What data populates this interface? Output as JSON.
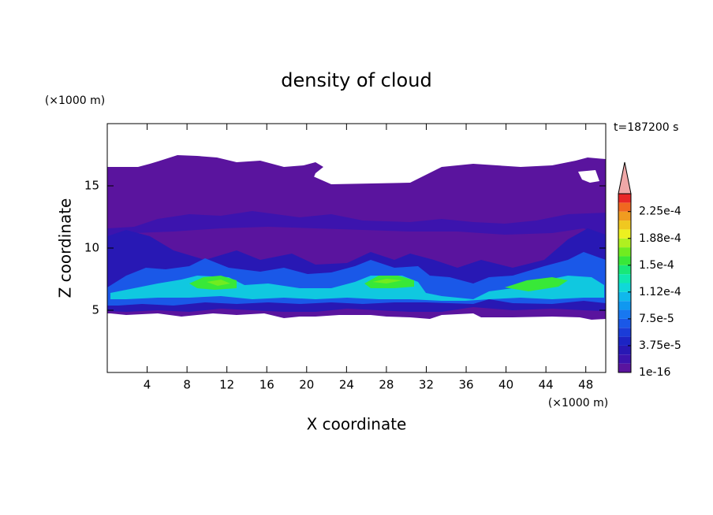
{
  "chart_data": {
    "type": "contour",
    "title": "density of cloud",
    "xlabel": "X coordinate",
    "ylabel": "Z coordinate",
    "x_unit": "(×1000 m)",
    "y_unit": "(×1000 m)",
    "annotation": "t=187200 s",
    "xlim": [
      0,
      50
    ],
    "ylim": [
      0,
      20
    ],
    "xticks": [
      4,
      8,
      12,
      16,
      20,
      24,
      28,
      32,
      36,
      40,
      44,
      48
    ],
    "yticks": [
      5,
      10,
      15
    ],
    "levels": [
      1e-16,
      1.25e-05,
      2.5e-05,
      3.75e-05,
      5e-05,
      6.25e-05,
      7.5e-05,
      8.75e-05,
      0.0001,
      0.0001125,
      0.000125,
      0.0001375,
      0.00015,
      0.0001625,
      0.000175,
      0.0001875,
      0.0002,
      0.0002125,
      0.000225,
      0.0002375,
      0.00025
    ],
    "colors": [
      "#5a149e",
      "#3c14ae",
      "#2818b4",
      "#1c24c4",
      "#1a3cd8",
      "#1a58e8",
      "#1878f0",
      "#1098f0",
      "#10b8ec",
      "#10d8d8",
      "#10e8b0",
      "#18e878",
      "#38e838",
      "#70ec20",
      "#b0f020",
      "#ecf020",
      "#f0c820",
      "#f09c20",
      "#f06820",
      "#e82828"
    ],
    "extend_color": "#f0a8a8",
    "colorbar_ticks": [
      1e-16,
      {
        "value": 3.75e-05,
        "label": "3.75e-5"
      },
      {
        "value": 7.5e-05,
        "label": "7.5e-5"
      },
      {
        "value": 0.0001125,
        "label": "1.12e-4"
      },
      {
        "value": 0.00015,
        "label": "1.5e-4"
      },
      {
        "value": 0.0001875,
        "label": "1.88e-4"
      },
      {
        "value": 0.000225,
        "label": "2.25e-4"
      }
    ]
  }
}
